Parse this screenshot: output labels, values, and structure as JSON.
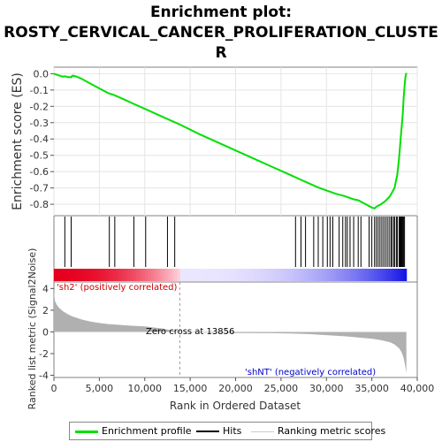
{
  "title_lines": [
    "Enrichment plot:",
    "ROSTY_CERVICAL_CANCER_PROLIFERATION_CLUSTE",
    "R"
  ],
  "colors": {
    "enrichment_line": "#00e000",
    "hits": "#000000",
    "metric_fill": "#b0b0b0",
    "positive_band": "#e6001e",
    "negative_band": "#1414e6",
    "pos_label": "#cc0000",
    "neg_label": "#0000cc"
  },
  "chart_data": [
    {
      "type": "line",
      "name": "enrichment-score-panel",
      "ylabel": "Enrichment score (ES)",
      "ylim": [
        -0.87,
        0.04
      ],
      "xlim": [
        0,
        40000
      ],
      "yticks": [
        0.0,
        -0.1,
        -0.2,
        -0.3,
        -0.4,
        -0.5,
        -0.6,
        -0.7,
        -0.8
      ],
      "ytick_labels": [
        "0.0",
        "-0.1",
        "-0.2",
        "-0.3",
        "-0.4",
        "-0.5",
        "-0.6",
        "-0.7",
        "-0.8"
      ],
      "grid": true,
      "x": [
        0,
        500,
        1000,
        1200,
        1500,
        1900,
        2000,
        2100,
        2500,
        3000,
        4000,
        5000,
        6000,
        6600,
        7000,
        8000,
        9000,
        10000,
        11000,
        12000,
        13000,
        14000,
        16000,
        18000,
        20000,
        22000,
        24000,
        26000,
        27000,
        28000,
        29000,
        30000,
        31000,
        32000,
        33000,
        33500,
        34000,
        34500,
        35000,
        35300,
        35500,
        36000,
        36500,
        37000,
        37500,
        37800,
        38000,
        38200,
        38400,
        38500,
        38600,
        38700,
        38800
      ],
      "y": [
        0.0,
        -0.01,
        -0.018,
        -0.016,
        -0.02,
        -0.022,
        -0.014,
        -0.012,
        -0.018,
        -0.03,
        -0.06,
        -0.09,
        -0.12,
        -0.13,
        -0.14,
        -0.165,
        -0.19,
        -0.215,
        -0.24,
        -0.265,
        -0.29,
        -0.315,
        -0.37,
        -0.42,
        -0.47,
        -0.52,
        -0.57,
        -0.62,
        -0.645,
        -0.67,
        -0.695,
        -0.715,
        -0.735,
        -0.75,
        -0.77,
        -0.775,
        -0.79,
        -0.805,
        -0.82,
        -0.825,
        -0.815,
        -0.8,
        -0.78,
        -0.75,
        -0.7,
        -0.62,
        -0.52,
        -0.38,
        -0.25,
        -0.15,
        -0.08,
        -0.02,
        0.005
      ]
    },
    {
      "type": "scatter",
      "name": "hits-panel",
      "hit_positions": [
        1200,
        1900,
        6100,
        6700,
        8800,
        10100,
        12500,
        13300,
        26600,
        27200,
        27700,
        28600,
        29100,
        29600,
        30100,
        30400,
        30700,
        31400,
        31800,
        32100,
        32300,
        32600,
        33000,
        33500,
        33800,
        34700,
        35000,
        35300,
        35500,
        35700,
        35900,
        36100,
        36300,
        36500,
        36700,
        36900,
        37100,
        37200,
        37400,
        37500,
        37700,
        37800,
        38000,
        38100,
        38200,
        38300,
        38400,
        38500,
        38600
      ]
    },
    {
      "type": "area",
      "name": "ranked-list-metric-panel",
      "xlabel": "Rank in Ordered Dataset",
      "ylabel": "Ranked list metric (Signal2Noise)",
      "xlim": [
        0,
        40000
      ],
      "ylim": [
        -4.2,
        4.6
      ],
      "yticks": [
        4,
        2,
        0,
        -2,
        -4
      ],
      "ytick_labels": [
        "4",
        "2",
        "0",
        "-2",
        "-4"
      ],
      "xticks": [
        0,
        5000,
        10000,
        15000,
        20000,
        25000,
        30000,
        35000,
        40000
      ],
      "xtick_labels": [
        "0",
        "5,000",
        "10,000",
        "15,000",
        "20,000",
        "25,000",
        "30,000",
        "35,000",
        "40,000"
      ],
      "x": [
        0,
        100,
        300,
        600,
        1000,
        1500,
        2000,
        3000,
        4000,
        5000,
        6000,
        8000,
        10000,
        12000,
        13856,
        16000,
        20000,
        24000,
        26000,
        28000,
        30000,
        32000,
        34000,
        35000,
        36000,
        37000,
        37500,
        38000,
        38300,
        38500,
        38650,
        38800
      ],
      "y": [
        3.8,
        2.9,
        2.5,
        2.2,
        1.9,
        1.65,
        1.45,
        1.15,
        0.95,
        0.82,
        0.72,
        0.6,
        0.5,
        0.3,
        0.0,
        -0.05,
        -0.1,
        -0.12,
        -0.15,
        -0.2,
        -0.3,
        -0.4,
        -0.55,
        -0.62,
        -0.75,
        -0.95,
        -1.15,
        -1.5,
        -1.9,
        -2.4,
        -3.0,
        -3.8
      ],
      "zero_cross_label": "Zero cross at 13856",
      "zero_cross_rank": 13856,
      "pos_label": "'sh2' (positively correlated)",
      "neg_label": "'shNT' (negatively correlated)"
    }
  ],
  "legend": {
    "items": [
      "Enrichment profile",
      "Hits",
      "Ranking metric scores"
    ]
  }
}
